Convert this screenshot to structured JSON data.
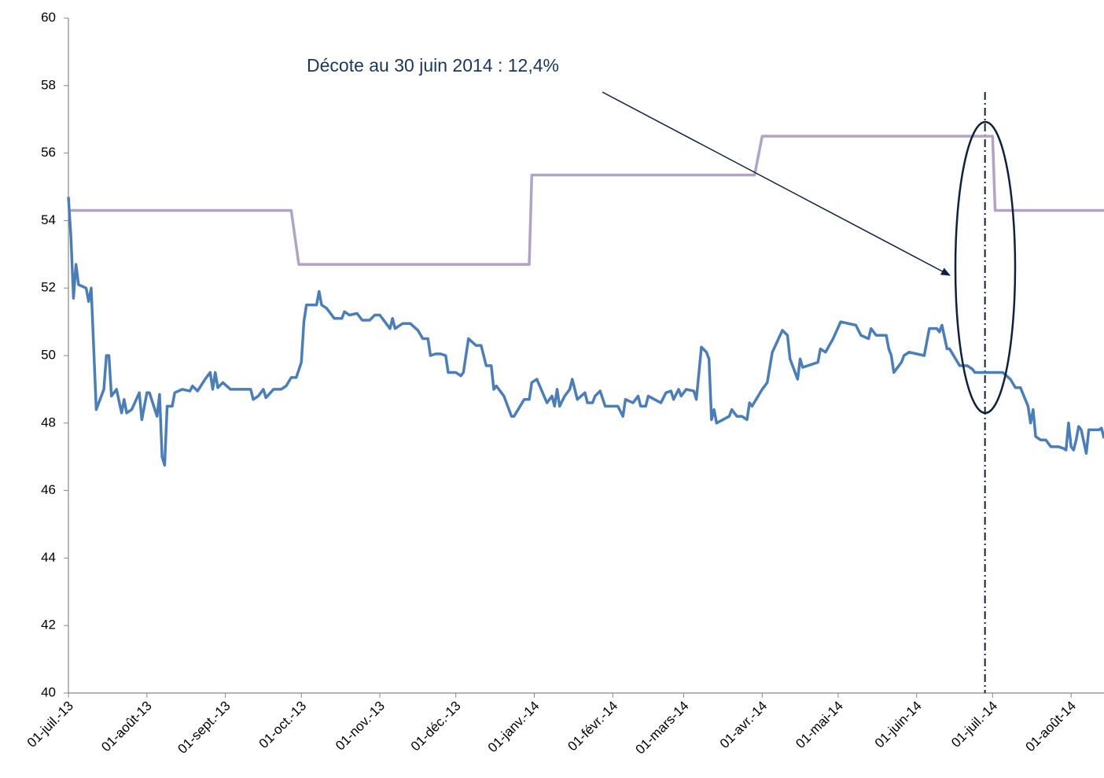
{
  "chart_data": {
    "type": "line",
    "annotation": "Décote au 30 juin 2014 : 12,4%",
    "vline": "2014-06-28",
    "xlim": [
      "2013-07-01",
      "2014-08-14"
    ],
    "xticks": [
      {
        "value": "2013-07-01",
        "label": "01-juil.-13"
      },
      {
        "value": "2013-08-01",
        "label": "01-août-13"
      },
      {
        "value": "2013-09-01",
        "label": "01-sept.-13"
      },
      {
        "value": "2013-10-01",
        "label": "01-oct.-13"
      },
      {
        "value": "2013-11-01",
        "label": "01-nov.-13"
      },
      {
        "value": "2013-12-01",
        "label": "01-déc.-13"
      },
      {
        "value": "2014-01-01",
        "label": "01-janv.-14"
      },
      {
        "value": "2014-02-01",
        "label": "01-févr.-14"
      },
      {
        "value": "2014-03-01",
        "label": "01-mars-14"
      },
      {
        "value": "2014-04-01",
        "label": "01-avr.-14"
      },
      {
        "value": "2014-05-01",
        "label": "01-mai-14"
      },
      {
        "value": "2014-06-01",
        "label": "01-juin-14"
      },
      {
        "value": "2014-07-01",
        "label": "01-juil.-14"
      },
      {
        "value": "2014-08-01",
        "label": "01-août-14"
      }
    ],
    "ylim": [
      40,
      60
    ],
    "yticks": [
      40,
      42,
      44,
      46,
      48,
      50,
      52,
      54,
      56,
      58,
      60
    ],
    "grid": false,
    "series": [
      {
        "color": "#b3a2c7",
        "x": [
          "2013-07-01",
          "2013-09-27",
          "2013-09-30",
          "2013-12-30",
          "2013-12-31",
          "2014-03-29",
          "2014-04-01",
          "2014-07-01",
          "2014-07-02",
          "2014-08-14"
        ],
        "values": [
          54.3,
          54.3,
          52.7,
          52.7,
          55.35,
          55.35,
          56.5,
          56.5,
          54.3,
          54.3
        ]
      },
      {
        "color": "#4a7ebb",
        "x": [
          "2013-07-01",
          "2013-07-02",
          "2013-07-03",
          "2013-07-04",
          "2013-07-05",
          "2013-07-08",
          "2013-07-09",
          "2013-07-10",
          "2013-07-12",
          "2013-07-15",
          "2013-07-16",
          "2013-07-17",
          "2013-07-18",
          "2013-07-20",
          "2013-07-22",
          "2013-07-23",
          "2013-07-24",
          "2013-07-26",
          "2013-07-29",
          "2013-07-30",
          "2013-08-01",
          "2013-08-02",
          "2013-08-05",
          "2013-08-06",
          "2013-08-07",
          "2013-08-08",
          "2013-08-09",
          "2013-08-11",
          "2013-08-12",
          "2013-08-15",
          "2013-08-18",
          "2013-08-19",
          "2013-08-21",
          "2013-08-24",
          "2013-08-26",
          "2013-08-27",
          "2013-08-28",
          "2013-08-29",
          "2013-08-31",
          "2013-09-03",
          "2013-09-11",
          "2013-09-12",
          "2013-09-14",
          "2013-09-16",
          "2013-09-17",
          "2013-09-20",
          "2013-09-23",
          "2013-09-25",
          "2013-09-27",
          "2013-09-29",
          "2013-10-01",
          "2013-10-02",
          "2013-10-03",
          "2013-10-07",
          "2013-10-08",
          "2013-10-09",
          "2013-10-11",
          "2013-10-14",
          "2013-10-17",
          "2013-10-18",
          "2013-10-20",
          "2013-10-23",
          "2013-10-25",
          "2013-10-28",
          "2013-10-30",
          "2013-11-01",
          "2013-11-02",
          "2013-11-05",
          "2013-11-06",
          "2013-11-07",
          "2013-11-10",
          "2013-11-13",
          "2013-11-16",
          "2013-11-18",
          "2013-11-20",
          "2013-11-21",
          "2013-11-23",
          "2013-11-25",
          "2013-11-27",
          "2013-11-28",
          "2013-12-01",
          "2013-12-03",
          "2013-12-04",
          "2013-12-06",
          "2013-12-09",
          "2013-12-11",
          "2013-12-13",
          "2013-12-15",
          "2013-12-16",
          "2013-12-17",
          "2013-12-20",
          "2013-12-23",
          "2013-12-24",
          "2013-12-28",
          "2013-12-30",
          "2013-12-31",
          "2014-01-02",
          "2014-01-06",
          "2014-01-08",
          "2014-01-09",
          "2014-01-10",
          "2014-01-11",
          "2014-01-13",
          "2014-01-15",
          "2014-01-16",
          "2014-01-18",
          "2014-01-21",
          "2014-01-22",
          "2014-01-24",
          "2014-01-25",
          "2014-01-27",
          "2014-01-29",
          "2014-02-03",
          "2014-02-05",
          "2014-02-06",
          "2014-02-09",
          "2014-02-11",
          "2014-02-12",
          "2014-02-14",
          "2014-02-15",
          "2014-02-20",
          "2014-02-22",
          "2014-02-24",
          "2014-02-25",
          "2014-02-27",
          "2014-02-28",
          "2014-03-02",
          "2014-03-05",
          "2014-03-06",
          "2014-03-08",
          "2014-03-10",
          "2014-03-11",
          "2014-03-12",
          "2014-03-13",
          "2014-03-14",
          "2014-03-19",
          "2014-03-20",
          "2014-03-22",
          "2014-03-24",
          "2014-03-26",
          "2014-03-27",
          "2014-03-28",
          "2014-04-01",
          "2014-04-03",
          "2014-04-05",
          "2014-04-09",
          "2014-04-11",
          "2014-04-12",
          "2014-04-15",
          "2014-04-16",
          "2014-04-17",
          "2014-04-23",
          "2014-04-24",
          "2014-04-26",
          "2014-04-29",
          "2014-05-02",
          "2014-05-08",
          "2014-05-10",
          "2014-05-13",
          "2014-05-14",
          "2014-05-16",
          "2014-05-20",
          "2014-05-21",
          "2014-05-22",
          "2014-05-23",
          "2014-05-26",
          "2014-05-27",
          "2014-05-29",
          "2014-06-04",
          "2014-06-06",
          "2014-06-09",
          "2014-06-10",
          "2014-06-11",
          "2014-06-13",
          "2014-06-14",
          "2014-06-18",
          "2014-06-21",
          "2014-06-23",
          "2014-06-24",
          "2014-07-05",
          "2014-07-08",
          "2014-07-10",
          "2014-07-12",
          "2014-07-15",
          "2014-07-16",
          "2014-07-17",
          "2014-07-18",
          "2014-07-20",
          "2014-07-22",
          "2014-07-24",
          "2014-07-27",
          "2014-07-29",
          "2014-07-30",
          "2014-07-31",
          "2014-08-01",
          "2014-08-02",
          "2014-08-03",
          "2014-08-04",
          "2014-08-05",
          "2014-08-07",
          "2014-08-08",
          "2014-08-12",
          "2014-08-13",
          "2014-08-14"
        ],
        "values": [
          54.7,
          53.5,
          51.7,
          52.7,
          52.1,
          52.0,
          51.6,
          52.0,
          48.4,
          49.0,
          50.0,
          50.0,
          48.8,
          49.0,
          48.3,
          48.7,
          48.3,
          48.4,
          48.9,
          48.1,
          48.9,
          48.9,
          48.2,
          48.85,
          47.0,
          46.75,
          48.5,
          48.5,
          48.9,
          49.0,
          48.95,
          49.1,
          48.95,
          49.3,
          49.5,
          49.0,
          49.5,
          49.05,
          49.2,
          49.0,
          49.0,
          48.7,
          48.8,
          49.0,
          48.75,
          49.0,
          49.0,
          49.1,
          49.35,
          49.35,
          49.8,
          51.0,
          51.5,
          51.5,
          51.9,
          51.5,
          51.4,
          51.1,
          51.1,
          51.3,
          51.2,
          51.25,
          51.05,
          51.05,
          51.2,
          51.2,
          51.1,
          50.8,
          51.1,
          50.8,
          50.95,
          50.95,
          50.75,
          50.5,
          50.5,
          50.0,
          50.05,
          50.05,
          50.0,
          49.5,
          49.5,
          49.4,
          49.5,
          50.5,
          50.3,
          50.3,
          49.7,
          49.7,
          49.0,
          49.1,
          48.8,
          48.2,
          48.2,
          48.7,
          48.7,
          49.2,
          49.3,
          48.6,
          48.8,
          48.5,
          49.0,
          48.5,
          48.8,
          49.0,
          49.3,
          48.7,
          48.9,
          48.6,
          48.6,
          48.8,
          48.95,
          48.5,
          48.5,
          48.2,
          48.7,
          48.6,
          48.8,
          48.5,
          48.5,
          48.8,
          48.6,
          48.9,
          48.95,
          48.7,
          49.0,
          48.8,
          49.0,
          48.95,
          48.7,
          50.25,
          50.1,
          49.9,
          48.1,
          48.4,
          48.0,
          48.2,
          48.4,
          48.2,
          48.2,
          48.1,
          48.6,
          48.5,
          49.0,
          49.2,
          50.1,
          50.75,
          50.6,
          49.9,
          49.3,
          49.9,
          49.65,
          49.8,
          50.2,
          50.1,
          50.5,
          51.0,
          50.9,
          50.6,
          50.5,
          50.8,
          50.6,
          50.6,
          50.2,
          50.0,
          49.5,
          49.8,
          50.0,
          50.1,
          50.0,
          50.8,
          50.8,
          50.7,
          50.9,
          50.2,
          50.2,
          49.7,
          49.7,
          49.6,
          49.5,
          49.5,
          49.3,
          49.05,
          49.05,
          48.5,
          48.0,
          48.4,
          47.6,
          47.5,
          47.5,
          47.3,
          47.3,
          47.25,
          47.2,
          48.0,
          47.3,
          47.2,
          47.5,
          47.9,
          47.8,
          47.1,
          47.8,
          47.8,
          47.85,
          47.55
        ]
      }
    ]
  }
}
